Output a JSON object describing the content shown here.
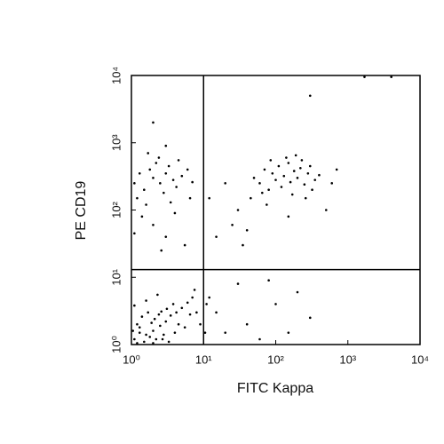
{
  "chart_data": {
    "type": "scatter",
    "x_label": "FITC Kappa",
    "y_label": "PE CD19",
    "log_x": true,
    "log_y": true,
    "xlim": [
      1,
      10000
    ],
    "ylim": [
      1,
      10000
    ],
    "xticks": [
      {
        "value": 1,
        "label": "10⁰"
      },
      {
        "value": 10,
        "label": "10¹"
      },
      {
        "value": 100,
        "label": "10²"
      },
      {
        "value": 1000,
        "label": "10³"
      },
      {
        "value": 10000,
        "label": "10⁴"
      }
    ],
    "yticks": [
      {
        "value": 1,
        "label": "10⁰"
      },
      {
        "value": 10,
        "label": "10¹"
      },
      {
        "value": 100,
        "label": "10²"
      },
      {
        "value": 1000,
        "label": "10³"
      },
      {
        "value": 10000,
        "label": "10⁴"
      }
    ],
    "quadrant_lines": {
      "x": 10,
      "y": 13
    },
    "color": "#000000",
    "x": [
      1.1,
      1.3,
      1.5,
      1.8,
      2,
      2.2,
      2.5,
      2.8,
      3,
      3.3,
      1.2,
      1.4,
      1.7,
      2.1,
      2.6,
      3.5,
      4,
      4.5,
      5,
      6,
      7,
      1.1,
      1.6,
      2.3,
      3.8,
      5.5,
      6.5,
      8,
      1.2,
      2,
      1.05,
      1.9,
      2.4,
      3.1,
      1.3,
      1.6,
      2.7,
      4.2,
      7.5,
      9,
      1.1,
      1.3,
      1.5,
      1.8,
      2,
      2.2,
      2.5,
      2.8,
      3,
      3.3,
      3.8,
      4.2,
      5,
      6,
      7,
      1.2,
      1.6,
      2.4,
      3.5,
      4.5,
      1.4,
      2,
      3,
      2.6,
      4,
      6.5,
      1.7,
      5.5,
      1.1,
      3,
      50,
      60,
      70,
      80,
      90,
      100,
      110,
      120,
      130,
      150,
      160,
      180,
      200,
      220,
      250,
      280,
      300,
      350,
      400,
      600,
      45,
      65,
      85,
      140,
      170,
      230,
      320,
      75,
      190,
      260,
      30,
      25,
      40,
      20,
      15,
      12,
      35,
      500,
      150,
      700,
      15,
      20,
      40,
      60,
      100,
      150,
      200,
      300,
      12,
      30,
      80,
      1700,
      4000,
      300,
      2,
      10.5,
      11
    ],
    "y": [
      1.2,
      1.5,
      1.1,
      1.3,
      1.6,
      1.2,
      1.9,
      1.4,
      2.2,
      1.1,
      2,
      2.6,
      3,
      2.4,
      3.1,
      2.7,
      1.5,
      2,
      3.5,
      4.2,
      5,
      3.8,
      4.5,
      5.5,
      4,
      1.8,
      2.8,
      3,
      1.05,
      1.05,
      1.6,
      2.1,
      2.8,
      3.4,
      1.8,
      1.4,
      1.2,
      3,
      6.5,
      2,
      250,
      350,
      200,
      400,
      300,
      500,
      250,
      180,
      350,
      450,
      280,
      220,
      320,
      400,
      260,
      150,
      120,
      600,
      130,
      550,
      80,
      60,
      40,
      25,
      90,
      150,
      700,
      30,
      45,
      900,
      300,
      250,
      400,
      200,
      350,
      280,
      450,
      220,
      320,
      500,
      260,
      380,
      300,
      420,
      240,
      350,
      450,
      280,
      330,
      250,
      150,
      180,
      550,
      600,
      170,
      550,
      200,
      120,
      650,
      150,
      100,
      60,
      50,
      250,
      40,
      150,
      30,
      100,
      80,
      400,
      3,
      1.5,
      2,
      1.2,
      4,
      1.5,
      6,
      2.5,
      5,
      8,
      9,
      9500,
      9500,
      5000,
      2000,
      1.5,
      4
    ]
  }
}
